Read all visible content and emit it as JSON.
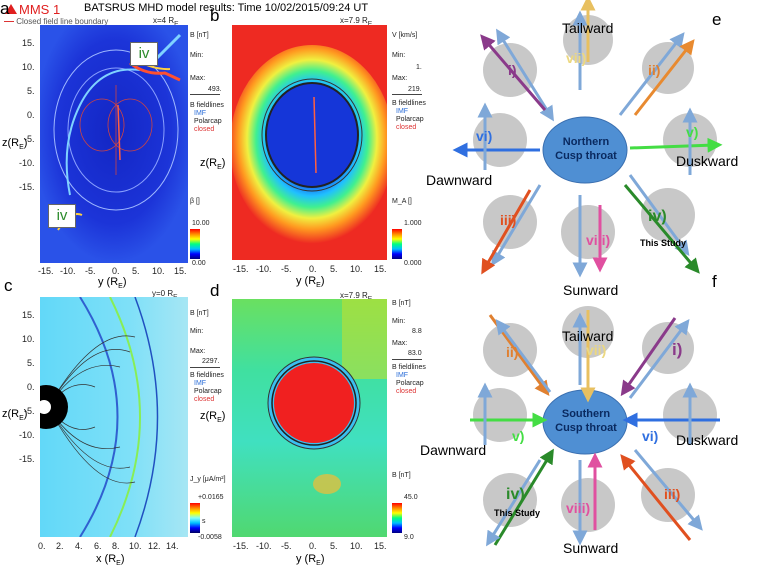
{
  "header": {
    "title": "BATSRUS MHD model results: Time 10/02/2015/09:24 UT"
  },
  "legend_a": {
    "mms": "MMS 1",
    "boundary": "Closed field line boundary"
  },
  "panels": {
    "a": {
      "letter": "a",
      "pos": "x=4 R",
      "sub": "E",
      "yticks": [
        "15.",
        "10.",
        "5.",
        "0.",
        "-5.",
        "-10.",
        "-15."
      ],
      "xticks": [
        "-15.",
        "-10.",
        "-5.",
        "0.",
        "5.",
        "10.",
        "15."
      ],
      "xlabel": "y (R",
      "ylabel": "z(R",
      "label_iv_top": "iv",
      "label_iv_bot": "iv"
    },
    "b": {
      "letter": "b",
      "pos": "x=7.9 R",
      "sub": "E",
      "xticks": [
        "-15.",
        "-10.",
        "-5.",
        "0.",
        "5.",
        "10.",
        "15."
      ],
      "xlabel": "y (R",
      "ylabel": "z(R"
    },
    "c": {
      "letter": "c",
      "pos": "y=0 R",
      "sub": "E",
      "yticks": [
        "15.",
        "10.",
        "5.",
        "0.",
        "-5.",
        "-10.",
        "-15."
      ],
      "xticks": [
        "0.",
        "2.",
        "4.",
        "6.",
        "8.",
        "10.",
        "12.",
        "14."
      ],
      "xlabel": "x (R",
      "ylabel": "z(R"
    },
    "d": {
      "letter": "d",
      "pos": "x=7.9 R",
      "sub": "E",
      "xticks": [
        "-15.",
        "-10.",
        "-5.",
        "0.",
        "5.",
        "10.",
        "15."
      ],
      "xlabel": "y (R",
      "ylabel": "z(R"
    }
  },
  "side_a": {
    "unit": "B [nT]",
    "min": "Min:",
    "max": "Max:",
    "maxval": "493.",
    "fl": "B fieldlines",
    "imf": "IMF",
    "pc": "Polarcap",
    "cl": "closed",
    "beta": "β []",
    "ctop": "10.00",
    "cbot": "0.00"
  },
  "side_b": {
    "unit": "V [km/s]",
    "min": "Min:",
    "minval": "1.",
    "max": "Max:",
    "maxval": "219.",
    "fl": "B fieldlines",
    "imf": "IMF",
    "pc": "Polarcap",
    "cl": "closed",
    "ma": "M_A []",
    "ctop": "1.000",
    "cbot": "0.000"
  },
  "side_c": {
    "unit": "B [nT]",
    "min": "Min:",
    "max": "Max:",
    "maxval": "2297.",
    "fl": "B fieldlines",
    "imf": "IMF",
    "pc": "Polarcap",
    "cl": "closed",
    "jy": "J_y [μA/m²]",
    "ctop": "+0.0165",
    "cbot": "-0.0058",
    "cmid": "s"
  },
  "side_d": {
    "unit": "B [nT]",
    "min": "Min:",
    "minval": "8.8",
    "max": "Max:",
    "maxval": "83.0",
    "fl": "B fieldlines",
    "imf": "IMF",
    "pc": "Polarcap",
    "cl": "closed",
    "bb": "B [nT]",
    "ctop": "45.0",
    "cbot": "9.0"
  },
  "diagram_e": {
    "letter": "e",
    "center1": "Northern",
    "center2": "Cusp throat",
    "top": "Tailward",
    "bottom": "Sunward",
    "left": "Dawnward",
    "right": "Duskward",
    "roman": [
      "i)",
      "ii)",
      "iii)",
      "iv)",
      "v)",
      "vi)",
      "vii)",
      "viii)"
    ],
    "study": "This Study"
  },
  "diagram_f": {
    "letter": "f",
    "center1": "Southern",
    "center2": "Cusp throat",
    "top": "Tailward",
    "bottom": "Sunward",
    "left": "Dawnward",
    "right": "Duskward",
    "roman": [
      "i)",
      "ii)",
      "iii)",
      "iv)",
      "v)",
      "vi)",
      "vii)",
      "viii)"
    ],
    "study": "This Study"
  },
  "colors": {
    "green_label": "#2a8a2a",
    "mms_red": "#e02020",
    "ellipse_blue": "#4f8fd3"
  }
}
